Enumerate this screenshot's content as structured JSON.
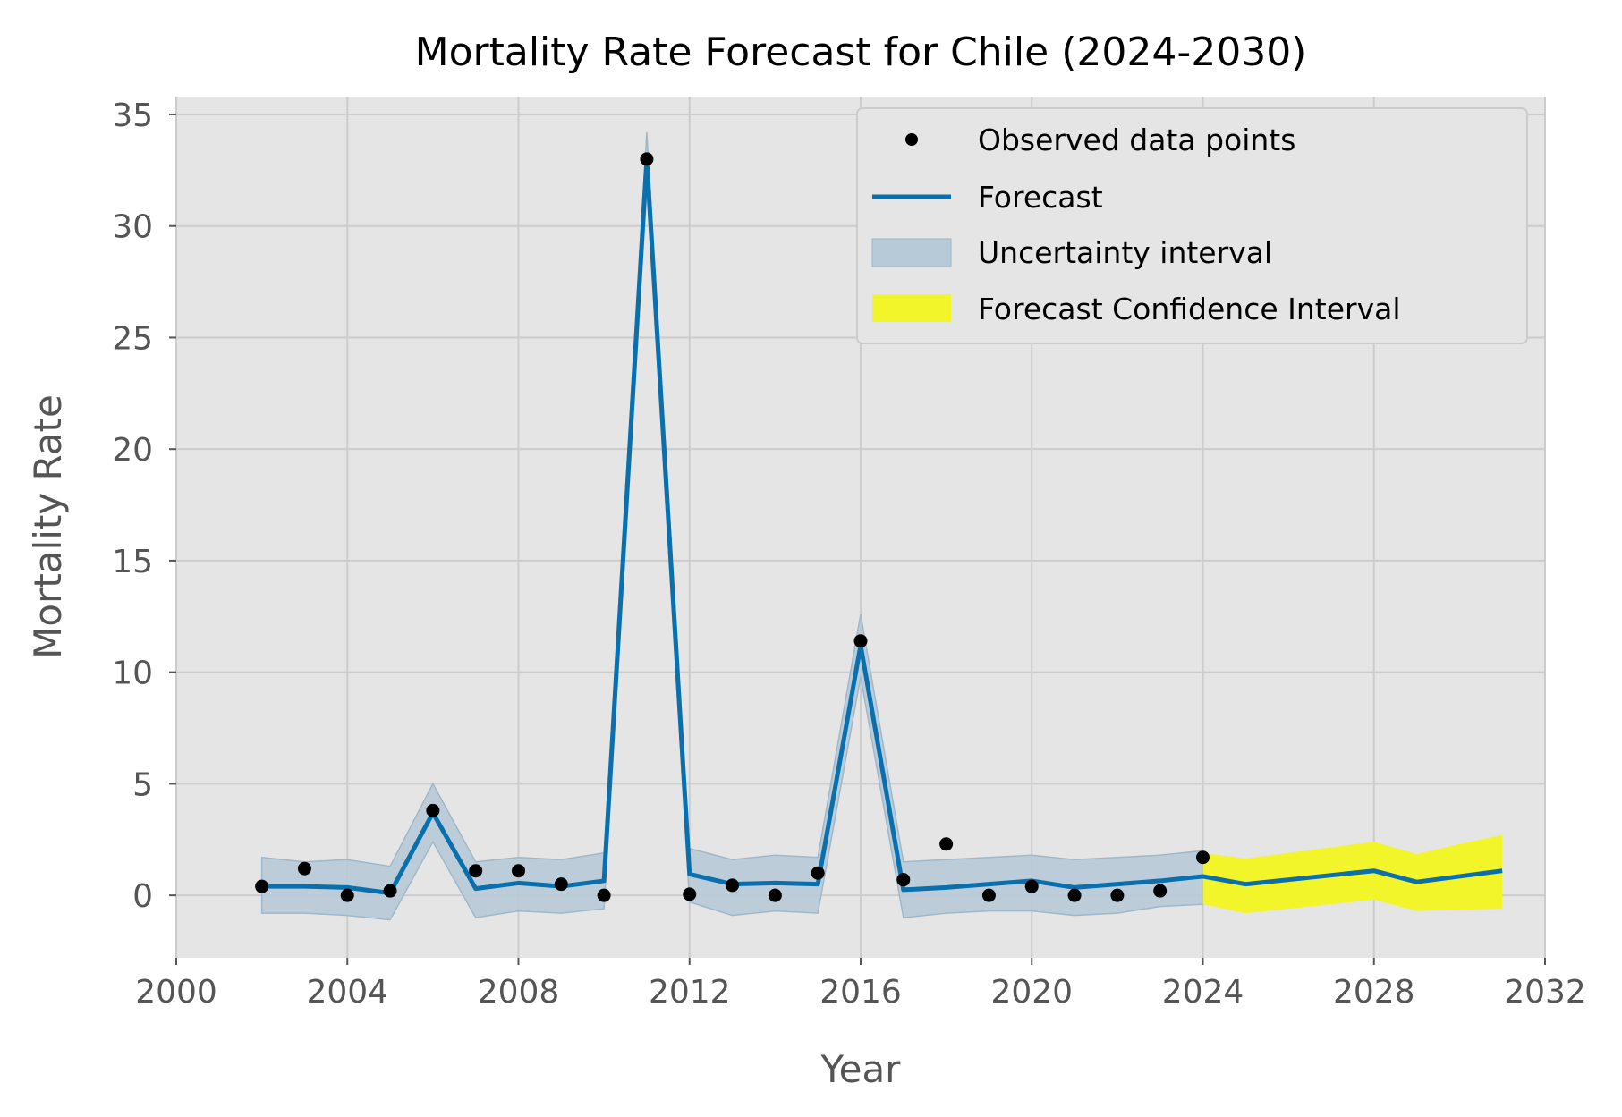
{
  "chart_data": {
    "type": "line",
    "title": "Mortality Rate Forecast for Chile (2024-2030)",
    "xlabel": "Year",
    "ylabel": "Mortality Rate",
    "xlim": [
      2000,
      2032
    ],
    "ylim": [
      -2.8,
      35.8
    ],
    "x_ticks": [
      "2000",
      "2004",
      "2008",
      "2012",
      "2016",
      "2020",
      "2024",
      "2028",
      "2032"
    ],
    "y_ticks": [
      "0",
      "5",
      "10",
      "15",
      "20",
      "25",
      "30",
      "35"
    ],
    "grid": true,
    "legend_position": "top-right",
    "observed": {
      "name": "Observed data points",
      "x": [
        2002,
        2003,
        2004,
        2005,
        2006,
        2007,
        2008,
        2009,
        2010,
        2011,
        2012,
        2013,
        2014,
        2015,
        2016,
        2017,
        2018,
        2019,
        2020,
        2021,
        2022,
        2023,
        2024
      ],
      "y": [
        0.4,
        1.2,
        0.0,
        0.2,
        3.8,
        1.1,
        1.1,
        0.5,
        0.0,
        33.0,
        0.05,
        0.45,
        0.0,
        1.0,
        11.4,
        0.7,
        2.3,
        0.0,
        0.4,
        0.0,
        0.0,
        0.2,
        1.7
      ]
    },
    "forecast": {
      "name": "Forecast",
      "x": [
        2002,
        2003,
        2004,
        2005,
        2006,
        2007,
        2008,
        2009,
        2010,
        2011,
        2012,
        2013,
        2014,
        2015,
        2016,
        2017,
        2018,
        2019,
        2020,
        2021,
        2022,
        2023,
        2024,
        2025,
        2026,
        2027,
        2028,
        2029,
        2030,
        2031
      ],
      "y": [
        0.4,
        0.4,
        0.35,
        0.1,
        3.7,
        0.3,
        0.55,
        0.4,
        0.65,
        33.0,
        0.95,
        0.5,
        0.55,
        0.5,
        11.2,
        0.25,
        0.35,
        0.5,
        0.65,
        0.35,
        0.5,
        0.65,
        0.85,
        0.5,
        0.7,
        0.9,
        1.1,
        0.6,
        0.85,
        1.1
      ]
    },
    "uncertainty_interval": {
      "name": "Uncertainty interval",
      "x": [
        2002,
        2003,
        2004,
        2005,
        2006,
        2007,
        2008,
        2009,
        2010,
        2011,
        2012,
        2013,
        2014,
        2015,
        2016,
        2017,
        2018,
        2019,
        2020,
        2021,
        2022,
        2023,
        2024
      ],
      "lower": [
        -0.8,
        -0.8,
        -0.9,
        -1.1,
        2.4,
        -1.0,
        -0.7,
        -0.8,
        -0.6,
        31.7,
        -0.3,
        -0.9,
        -0.7,
        -0.8,
        9.8,
        -1.0,
        -0.8,
        -0.7,
        -0.7,
        -0.9,
        -0.8,
        -0.5,
        -0.4
      ],
      "upper": [
        1.7,
        1.5,
        1.6,
        1.3,
        5.0,
        1.5,
        1.7,
        1.6,
        1.9,
        34.2,
        2.1,
        1.6,
        1.8,
        1.7,
        12.6,
        1.5,
        1.6,
        1.7,
        1.8,
        1.6,
        1.7,
        1.8,
        2.0
      ],
      "color": "#b7cad7"
    },
    "forecast_confidence_interval": {
      "name": "Forecast Confidence Interval",
      "x": [
        2024,
        2025,
        2026,
        2027,
        2028,
        2029,
        2030,
        2031
      ],
      "lower": [
        -0.4,
        -0.8,
        -0.6,
        -0.4,
        -0.2,
        -0.7,
        -0.65,
        -0.6
      ],
      "upper": [
        1.9,
        1.65,
        1.9,
        2.15,
        2.4,
        1.85,
        2.3,
        2.7
      ],
      "color": "#f1f52a"
    },
    "colors": {
      "plot_background": "#e5e5e5",
      "grid": "#cccccc",
      "forecast_line": "#0a6fad",
      "observed_points": "#000000"
    }
  }
}
